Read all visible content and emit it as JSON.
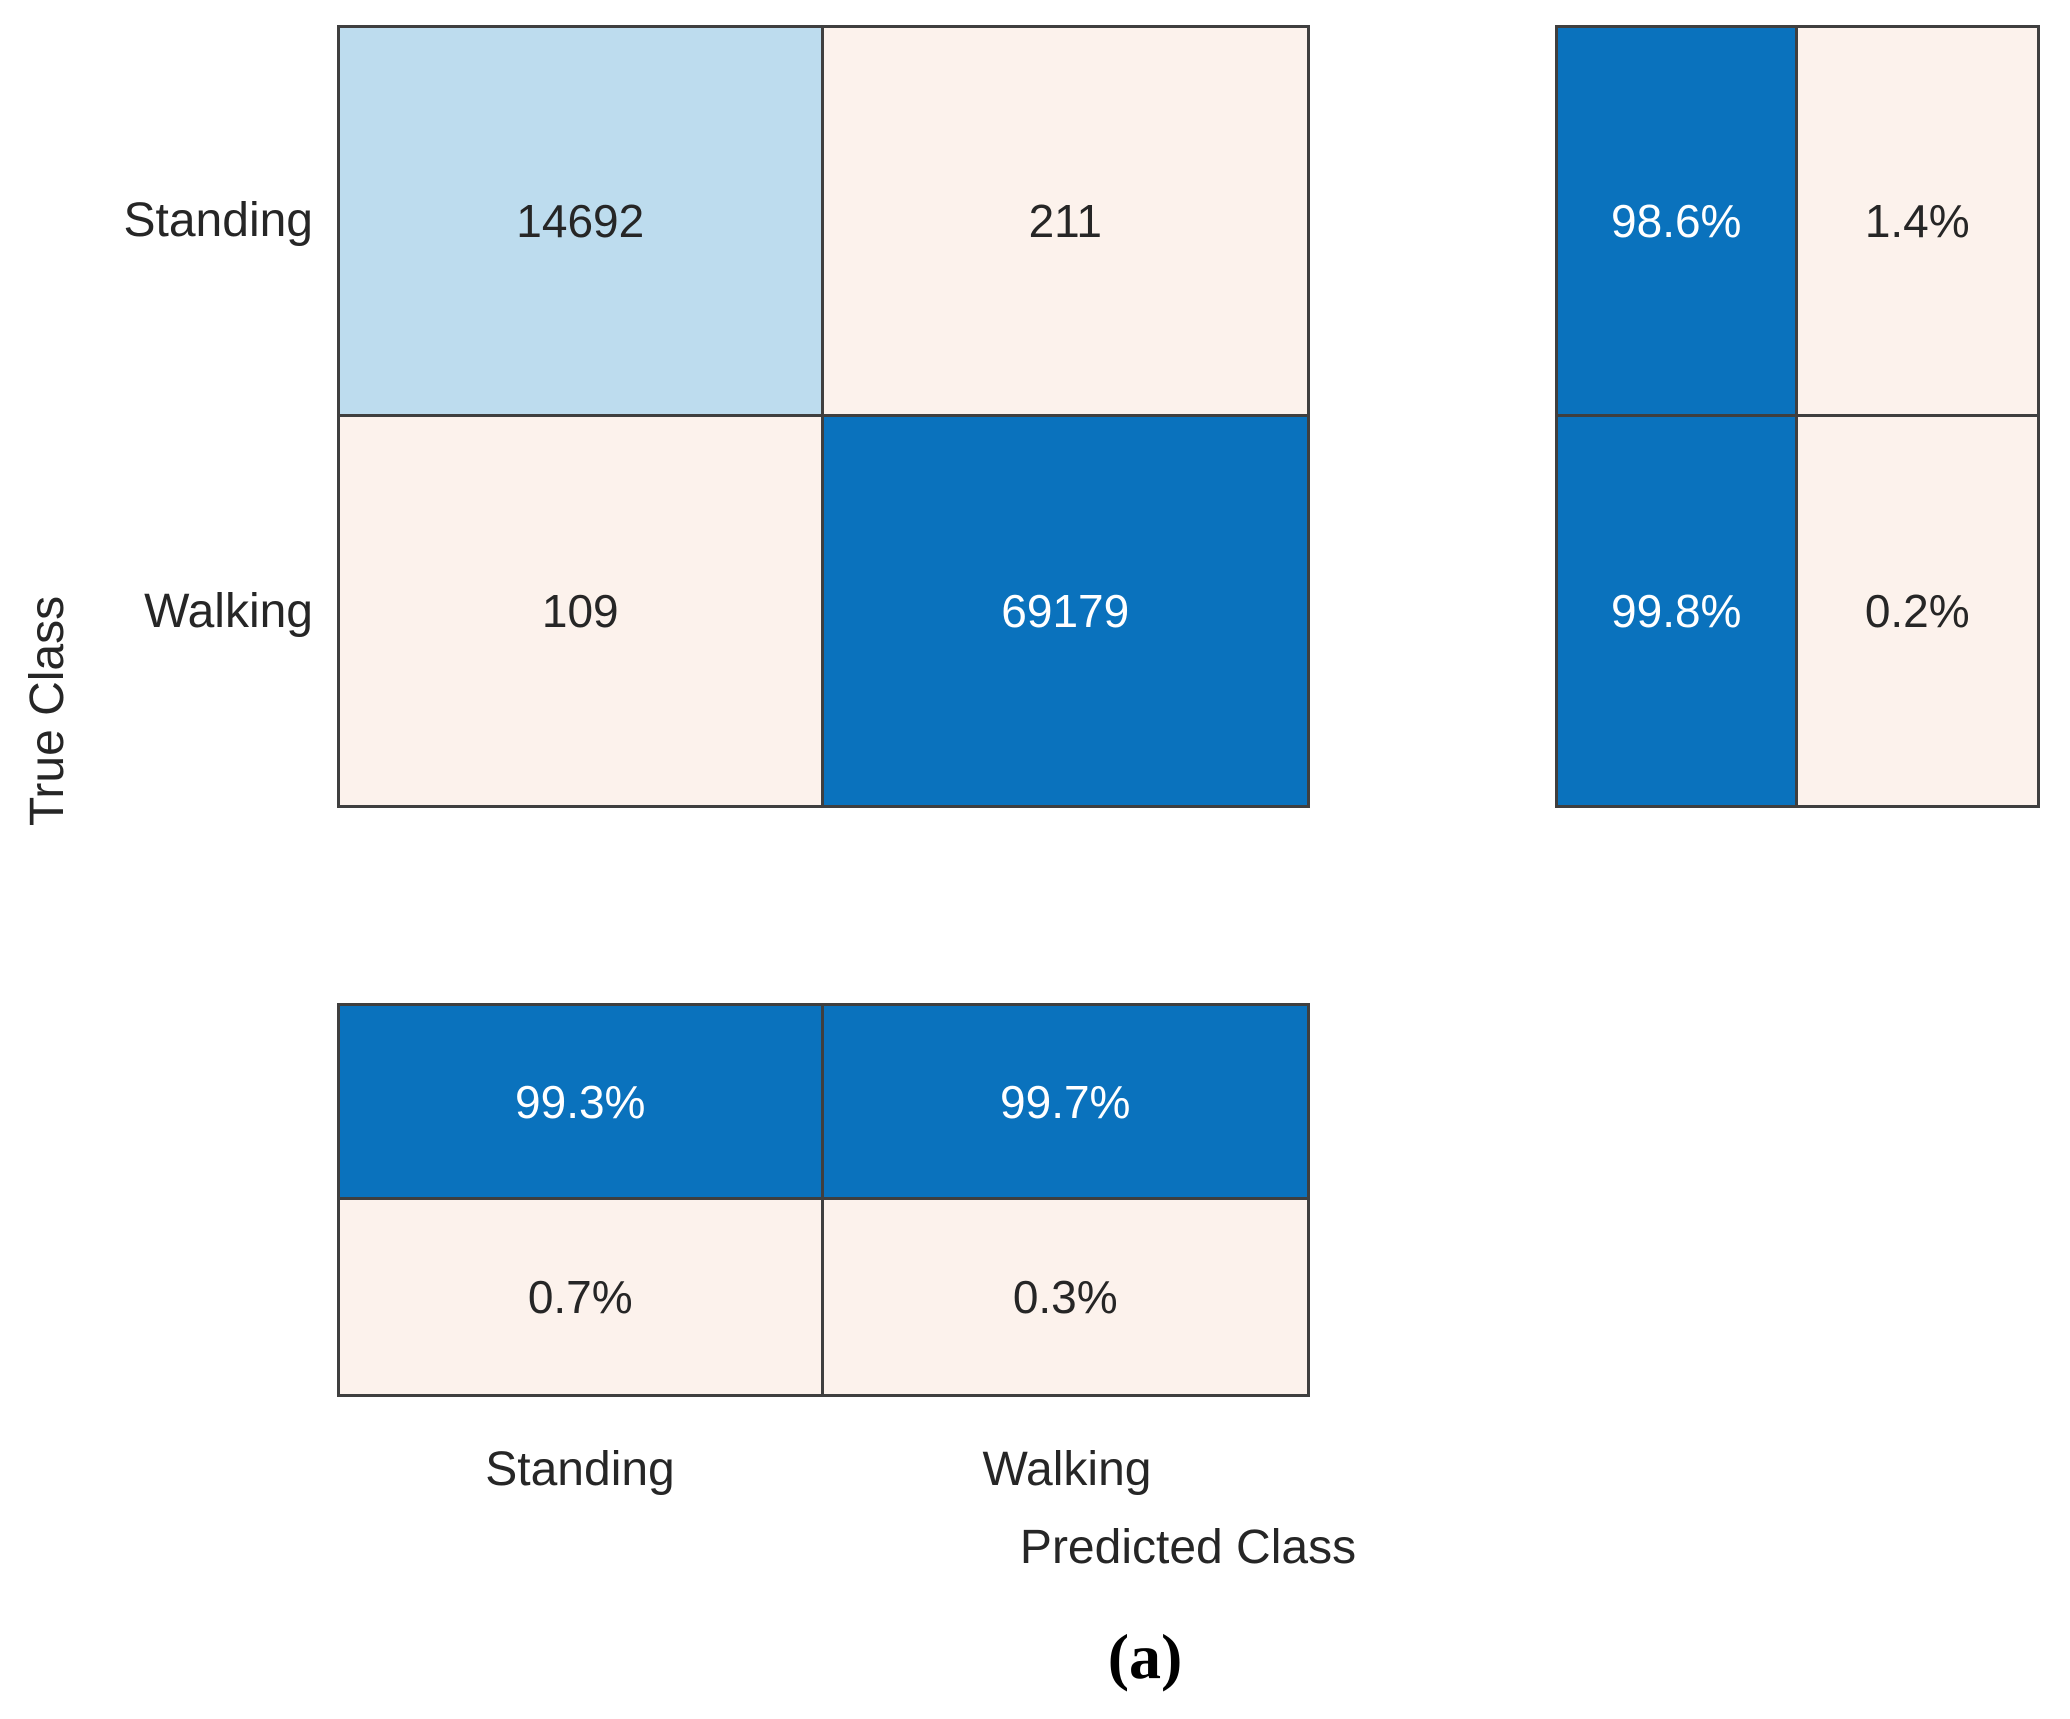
{
  "chart_data": {
    "type": "heatmap",
    "variant": "confusion-matrix",
    "xlabel": "Predicted Class",
    "ylabel": "True Class",
    "row_labels": [
      "Standing",
      "Walking"
    ],
    "col_labels": [
      "Standing",
      "Walking"
    ],
    "counts": [
      [
        14692,
        211
      ],
      [
        109,
        69179
      ]
    ],
    "row_summary": [
      [
        "98.6%",
        "1.4%"
      ],
      [
        "99.8%",
        "0.2%"
      ]
    ],
    "col_summary": [
      [
        "99.3%",
        "99.7%"
      ],
      [
        "0.7%",
        "0.3%"
      ]
    ],
    "legend_position": "none",
    "grid": "off",
    "colors": {
      "cell-strong": "#0a72bd",
      "cell-light": "#bddcee",
      "cell-cream": "#fcf2ec",
      "grid-line": "#3f3f3f",
      "text-dark": "#262626",
      "text-light": "#ffffff"
    }
  },
  "caption": {
    "text": "(a)"
  }
}
